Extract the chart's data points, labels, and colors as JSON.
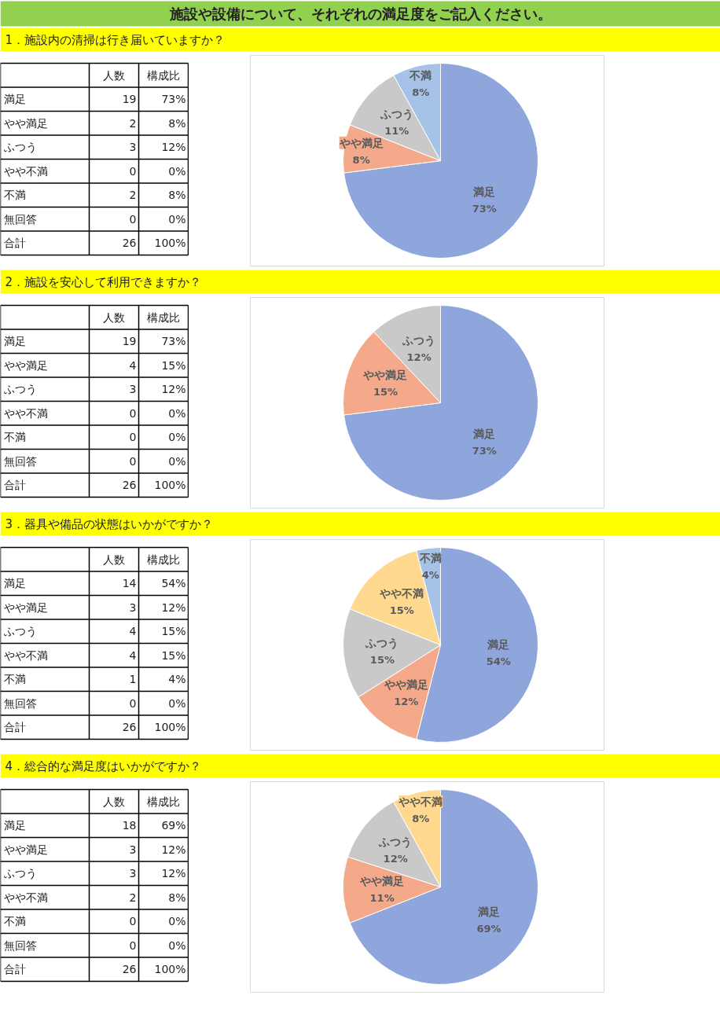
{
  "chart_data": [
    {
      "type": "other",
      "title": "施設や設備について、それぞれの満足度をご記入ください。"
    },
    {
      "type": "other",
      "title": "1．施設内の清掃は行き届いていますか？",
      "categories": [
        "満足",
        "やや満足",
        "ふつう",
        "やや不満",
        "不満",
        "無回答",
        "合計"
      ],
      "data_labels": true,
      "series": [
        {
          "name": "人数",
          "values": [
            19,
            2,
            3,
            0,
            2,
            0,
            26
          ]
        },
        {
          "name": "構成比",
          "values": [
            73,
            8,
            12,
            0,
            8,
            0,
            100
          ],
          "value_labels": [
            "73%",
            "8%",
            "12%",
            "0%",
            "8%",
            "0%",
            "100%"
          ]
        }
      ]
    },
    {
      "type": "pie",
      "categories": [
        "満足",
        "やや満足",
        "ふつう",
        "不満"
      ],
      "values": [
        73,
        8,
        11,
        8
      ],
      "value_labels": [
        "73%",
        "8%",
        "11%",
        "8%"
      ],
      "colors": [
        "#8fa6dc",
        "#f4a98a",
        "#c9c9c9",
        "#a6c2e6"
      ]
    },
    {
      "type": "other",
      "title": "2．施設を安心して利用できますか？",
      "categories": [
        "満足",
        "やや満足",
        "ふつう",
        "やや不満",
        "不満",
        "無回答",
        "合計"
      ],
      "data_labels": true,
      "series": [
        {
          "name": "人数",
          "values": [
            19,
            4,
            3,
            0,
            0,
            0,
            26
          ]
        },
        {
          "name": "構成比",
          "values": [
            73,
            15,
            12,
            0,
            0,
            0,
            100
          ],
          "value_labels": [
            "73%",
            "15%",
            "12%",
            "0%",
            "0%",
            "0%",
            "100%"
          ]
        }
      ]
    },
    {
      "type": "pie",
      "categories": [
        "満足",
        "やや満足",
        "ふつう"
      ],
      "values": [
        73,
        15,
        12
      ],
      "value_labels": [
        "73%",
        "15%",
        "12%"
      ],
      "colors": [
        "#8fa6dc",
        "#f4a98a",
        "#c9c9c9"
      ]
    },
    {
      "type": "other",
      "title": "3．器具や備品の状態はいかがですか？",
      "categories": [
        "満足",
        "やや満足",
        "ふつう",
        "やや不満",
        "不満",
        "無回答",
        "合計"
      ],
      "data_labels": true,
      "series": [
        {
          "name": "人数",
          "values": [
            14,
            3,
            4,
            4,
            1,
            0,
            26
          ]
        },
        {
          "name": "構成比",
          "values": [
            54,
            12,
            15,
            15,
            4,
            0,
            100
          ],
          "value_labels": [
            "54%",
            "12%",
            "15%",
            "15%",
            "4%",
            "0%",
            "100%"
          ]
        }
      ]
    },
    {
      "type": "pie",
      "categories": [
        "満足",
        "やや満足",
        "ふつう",
        "やや不満",
        "不満"
      ],
      "values": [
        54,
        12,
        15,
        15,
        4
      ],
      "value_labels": [
        "54%",
        "12%",
        "15%",
        "15%",
        "4%"
      ],
      "colors": [
        "#8fa6dc",
        "#f4a98a",
        "#c9c9c9",
        "#ffd98f",
        "#a6c2e6"
      ]
    },
    {
      "type": "other",
      "title": "4．総合的な満足度はいかがですか？",
      "categories": [
        "満足",
        "やや満足",
        "ふつう",
        "やや不満",
        "不満",
        "無回答",
        "合計"
      ],
      "data_labels": true,
      "series": [
        {
          "name": "人数",
          "values": [
            18,
            3,
            3,
            2,
            0,
            0,
            26
          ]
        },
        {
          "name": "構成比",
          "values": [
            69,
            12,
            12,
            8,
            0,
            0,
            100
          ],
          "value_labels": [
            "69%",
            "12%",
            "12%",
            "8%",
            "0%",
            "0%",
            "100%"
          ]
        }
      ]
    },
    {
      "type": "pie",
      "categories": [
        "満足",
        "やや満足",
        "ふつう",
        "やや不満"
      ],
      "values": [
        69,
        11,
        12,
        8
      ],
      "value_labels": [
        "69%",
        "11%",
        "12%",
        "8%"
      ],
      "colors": [
        "#8fa6dc",
        "#f4a98a",
        "#c9c9c9",
        "#ffd98f"
      ]
    }
  ]
}
